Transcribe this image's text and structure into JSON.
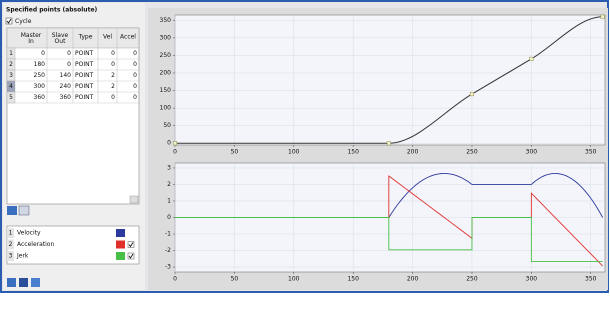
{
  "panel": {
    "title": "Specified points (absolute)",
    "cycle_label": "Cycle",
    "cycle_checked": true
  },
  "table": {
    "columns": [
      "Master In",
      "Slave Out",
      "Type",
      "Vel",
      "Accel"
    ],
    "row_labels": [
      1,
      2,
      3,
      4,
      5
    ],
    "rows": [
      [
        0,
        0,
        "POINT",
        0,
        0
      ],
      [
        180,
        0,
        "POINT",
        0,
        0
      ],
      [
        250,
        140,
        "POINT",
        2,
        0
      ],
      [
        300,
        240,
        "POINT",
        2,
        0
      ],
      [
        360,
        360,
        "POINT",
        0,
        0
      ]
    ]
  },
  "legend": [
    {
      "number": 1,
      "name": "Velocity",
      "color": "#2c3a9c",
      "checked": false
    },
    {
      "number": 2,
      "name": "Acceleration",
      "color": "#e0302c",
      "checked": true
    },
    {
      "number": 3,
      "name": "Jerk",
      "color": "#46c046",
      "checked": true
    }
  ],
  "charts": [
    {
      "type": "line",
      "color": "#333333",
      "xlim": [
        0,
        362
      ],
      "xticks": [
        0,
        50,
        100,
        150,
        200,
        250,
        300,
        350
      ],
      "ylim": [
        -5,
        365
      ],
      "yticks": [
        0,
        50,
        100,
        150,
        200,
        250,
        300,
        350
      ],
      "grid": true
    },
    {
      "type": "line",
      "xlim": [
        0,
        362
      ],
      "xticks": [
        0,
        50,
        100,
        150,
        200,
        250,
        300,
        350
      ],
      "ylim": [
        -3.3,
        3.3
      ],
      "yticks": [
        -3,
        -2,
        -1,
        0,
        1,
        2,
        3
      ],
      "grid": true
    }
  ]
}
